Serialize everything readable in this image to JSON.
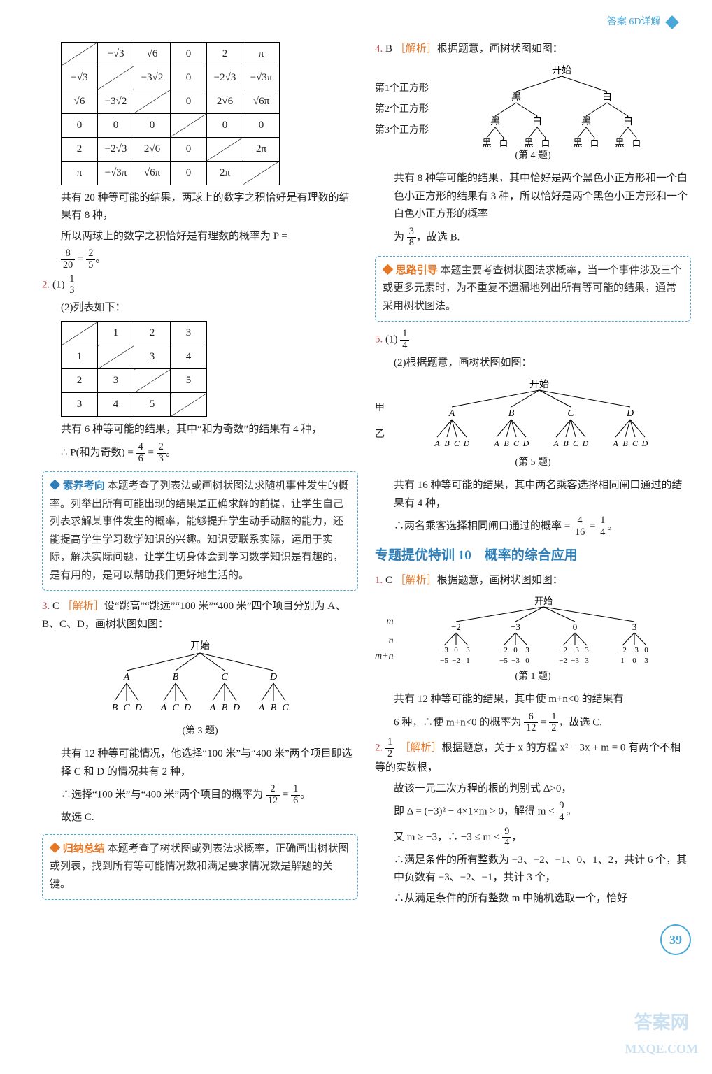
{
  "header": {
    "text": "答案 6D详解"
  },
  "left": {
    "table1": {
      "type": "table",
      "border_color": "#000000",
      "cell_font": 15,
      "rows": [
        [
          "",
          "−√3",
          "√6",
          "0",
          "2",
          "π"
        ],
        [
          "−√3",
          "",
          "−3√2",
          "0",
          "−2√3",
          "−√3π"
        ],
        [
          "√6",
          "−3√2",
          "",
          "0",
          "2√6",
          "√6π"
        ],
        [
          "0",
          "0",
          "0",
          "",
          "0",
          "0"
        ],
        [
          "2",
          "−2√3",
          "2√6",
          "0",
          "",
          "2π"
        ],
        [
          "π",
          "−√3π",
          "√6π",
          "0",
          "2π",
          ""
        ]
      ],
      "diagonal_cells": [
        [
          0,
          0
        ],
        [
          1,
          1
        ],
        [
          2,
          2
        ],
        [
          3,
          3
        ],
        [
          4,
          4
        ],
        [
          5,
          5
        ]
      ]
    },
    "after_t1_a": "共有 20 种等可能的结果，两球上的数字之积恰好是有理数的结果有 8 种，",
    "after_t1_b": "所以两球上的数字之积恰好是有理数的概率为 P =",
    "frac1": {
      "num": "8",
      "den": "20"
    },
    "eq1_mid": "=",
    "frac1b": {
      "num": "2",
      "den": "5"
    },
    "eq1_end": "。",
    "q2_num": "2.",
    "q2_1_label": "(1)",
    "q2_1_frac": {
      "num": "1",
      "den": "3"
    },
    "q2_2_lead": "(2)列表如下：",
    "table2": {
      "type": "table",
      "rows": [
        [
          "",
          "1",
          "2",
          "3"
        ],
        [
          "1",
          "",
          "3",
          "4"
        ],
        [
          "2",
          "3",
          "",
          "5"
        ],
        [
          "3",
          "4",
          "5",
          ""
        ]
      ],
      "diagonal_cells": [
        [
          0,
          0
        ],
        [
          1,
          1
        ],
        [
          2,
          2
        ],
        [
          3,
          3
        ]
      ]
    },
    "after_t2_a": "共有 6 种等可能的结果，其中“和为奇数”的结果有 4 种，",
    "after_t2_b_pre": "∴ P(和为奇数) =",
    "after_t2_frac_a": {
      "num": "4",
      "den": "6"
    },
    "after_t2_mid": "=",
    "after_t2_frac_b": {
      "num": "2",
      "den": "3"
    },
    "after_t2_end": "。",
    "callout1_lead": "◆ 素养考向",
    "callout1_body": "本题考查了列表法或画树状图法求随机事件发生的概率。列举出所有可能出现的结果是正确求解的前提，让学生自己列表求解某事件发生的概率，能够提升学生动手动脑的能力，还能提高学生学习数学知识的兴趣。知识要联系实际，运用于实际，解决实际问题，让学生切身体会到学习数学知识是有趣的，是有用的，是可以帮助我们更好地生活的。",
    "q3_num": "3.",
    "q3_ans": "C",
    "q3_tag": "［解析］",
    "q3_text_a": "设“跳高”“跳远”“100 米”“400 米”四个项目分别为 A、B、C、D，画树状图如图：",
    "tree3": {
      "type": "tree",
      "root": "开始",
      "level1": [
        "A",
        "B",
        "C",
        "D"
      ],
      "level2": [
        [
          "B",
          "C",
          "D"
        ],
        [
          "A",
          "C",
          "D"
        ],
        [
          "A",
          "B",
          "D"
        ],
        [
          "A",
          "B",
          "C"
        ]
      ],
      "caption": "(第 3 题)",
      "line_color": "#000000"
    },
    "q3_text_b": "共有 12 种等可能情况，他选择“100 米”与“400 米”两个项目即选择 C 和 D 的情况共有 2 种，",
    "q3_text_c_pre": "∴选择“100 米”与“400 米”两个项目的概率为",
    "q3_frac_a": {
      "num": "2",
      "den": "12"
    },
    "q3_mid": "=",
    "q3_frac_b": {
      "num": "1",
      "den": "6"
    },
    "q3_end": "。",
    "q3_text_d": "故选 C.",
    "callout2_lead": "◆ 归纳总结",
    "callout2_body": "本题考查了树状图或列表法求概率，正确画出树状图或列表，找到所有等可能情况数和满足要求情况数是解题的关键。"
  },
  "right": {
    "q4_num": "4.",
    "q4_ans": "B",
    "q4_tag": "［解析］",
    "q4_text_a": "根据题意，画树状图如图：",
    "tree4": {
      "type": "tree",
      "root": "开始",
      "row_labels": [
        "第1个正方形",
        "第2个正方形",
        "第3个正方形"
      ],
      "level1": [
        "黑",
        "白"
      ],
      "level2": [
        [
          "黑",
          "白"
        ],
        [
          "黑",
          "白"
        ]
      ],
      "level3": [
        [
          "黑",
          "白"
        ],
        [
          "黑",
          "白"
        ],
        [
          "黑",
          "白"
        ],
        [
          "黑",
          "白"
        ]
      ],
      "caption": "(第 4 题)"
    },
    "q4_text_b": "共有 8 种等可能的结果，其中恰好是两个黑色小正方形和一个白色小正方形的结果有 3 种，所以恰好是两个黑色小正方形和一个白色小正方形的概率",
    "q4_text_c_pre": "为",
    "q4_frac": {
      "num": "3",
      "den": "8"
    },
    "q4_text_c_post": "，故选 B.",
    "callout3_lead": "◆ 思路引导",
    "callout3_body": "本题主要考查树状图法求概率，当一个事件涉及三个或更多元素时，为不重复不遗漏地列出所有等可能的结果，通常采用树状图法。",
    "q5_num": "5.",
    "q5_1_label": "(1)",
    "q5_1_frac": {
      "num": "1",
      "den": "4"
    },
    "q5_2_lead": "(2)根据题意，画树状图如图：",
    "tree5": {
      "type": "tree",
      "root": "开始",
      "row_labels": [
        "甲",
        "乙"
      ],
      "level1": [
        "A",
        "B",
        "C",
        "D"
      ],
      "level2": [
        [
          "A",
          "B",
          "C",
          "D"
        ],
        [
          "A",
          "B",
          "C",
          "D"
        ],
        [
          "A",
          "B",
          "C",
          "D"
        ],
        [
          "A",
          "B",
          "C",
          "D"
        ]
      ],
      "caption": "(第 5 题)"
    },
    "q5_text_a": "共有 16 种等可能的结果，其中两名乘客选择相同闸口通过的结果有 4 种，",
    "q5_text_b_pre": "∴两名乘客选择相同闸口通过的概率 =",
    "q5_frac_a": {
      "num": "4",
      "den": "16"
    },
    "q5_mid": "=",
    "q5_frac_b": {
      "num": "1",
      "den": "4"
    },
    "q5_end": "。",
    "section_title": "专题提优特训 10　概率的综合应用",
    "s1_num": "1.",
    "s1_ans": "C",
    "s1_tag": "［解析］",
    "s1_text_a": "根据题意，画树状图如图：",
    "tree_s1": {
      "type": "tree",
      "root": "开始",
      "row_labels": [
        "m",
        "n",
        "m+n"
      ],
      "level1": [
        "−2",
        "−3",
        "0",
        "3"
      ],
      "level2_n": [
        [
          "−3",
          "0",
          "3"
        ],
        [
          "−2",
          "0",
          "3"
        ],
        [
          "−2",
          "−3",
          "3"
        ],
        [
          "−2",
          "−3",
          "0"
        ]
      ],
      "level2_sum": [
        [
          "−5",
          "−2",
          "1"
        ],
        [
          "−5",
          "−3",
          "0"
        ],
        [
          "−2",
          "−3",
          "3"
        ],
        [
          "1",
          "0",
          "3"
        ]
      ],
      "caption": "(第 1 题)"
    },
    "s1_text_b_pre": "共有 12 种等可能的结果，其中使 m+n<0 的结果有",
    "s1_text_b_mid": "6 种，∴使 m+n<0 的概率为",
    "s1_frac_a": {
      "num": "6",
      "den": "12"
    },
    "s1_mid": "=",
    "s1_frac_b": {
      "num": "1",
      "den": "2"
    },
    "s1_end": "，故选 C.",
    "s2_num": "2.",
    "s2_frac_ans": {
      "num": "1",
      "den": "2"
    },
    "s2_tag": "［解析］",
    "s2_text_a": "根据题意，关于 x 的方程 x² − 3x + m = 0 有两个不相等的实数根，",
    "s2_text_b": "故该一元二次方程的根的判别式 Δ>0，",
    "s2_text_c_pre": "即 Δ = (−3)² − 4×1×m > 0，解得 m <",
    "s2_frac_c": {
      "num": "9",
      "den": "4"
    },
    "s2_text_c_post": "。",
    "s2_text_d_pre": "又 m ≥ −3，∴ −3 ≤ m <",
    "s2_frac_d": {
      "num": "9",
      "den": "4"
    },
    "s2_text_d_post": "，",
    "s2_text_e": "∴满足条件的所有整数为 −3、−2、−1、0、1、2，共计 6 个，其中负数有 −3、−2、−1，共计 3 个，",
    "s2_text_f": "∴从满足条件的所有整数 m 中随机选取一个，恰好"
  },
  "page_number": "39",
  "watermark": {
    "line1": "答案网",
    "line2": "MXQE.COM"
  },
  "colors": {
    "accent_blue": "#2e7fb8",
    "accent_orange": "#e67725",
    "accent_red": "#c0504d",
    "dash_border": "#4aa8d8",
    "text": "#222222",
    "background": "#ffffff"
  }
}
